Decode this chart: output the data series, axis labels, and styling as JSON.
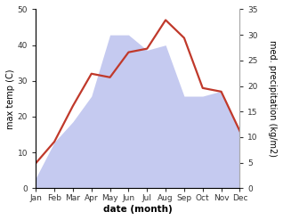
{
  "months": [
    "Jan",
    "Feb",
    "Mar",
    "Apr",
    "May",
    "Jun",
    "Jul",
    "Aug",
    "Sep",
    "Oct",
    "Nov",
    "Dec"
  ],
  "temperature": [
    7,
    13,
    23,
    32,
    31,
    38,
    39,
    47,
    42,
    28,
    27,
    16
  ],
  "precipitation_right": [
    2,
    9,
    13,
    18,
    30,
    30,
    27,
    28,
    18,
    18,
    19,
    11
  ],
  "temp_color": "#c0392b",
  "precip_fill_color": "#c5caf0",
  "left_ylim": [
    0,
    50
  ],
  "right_ylim": [
    0,
    35
  ],
  "left_yticks": [
    0,
    10,
    20,
    30,
    40,
    50
  ],
  "right_yticks": [
    0,
    5,
    10,
    15,
    20,
    25,
    30,
    35
  ],
  "xlabel": "date (month)",
  "ylabel_left": "max temp (C)",
  "ylabel_right": "med. precipitation (kg/m2)",
  "background_color": "#ffffff",
  "temp_linewidth": 1.6,
  "label_fontsize": 7,
  "tick_fontsize": 6.5,
  "xlabel_fontsize": 7.5,
  "ylabel_fontsize": 7
}
